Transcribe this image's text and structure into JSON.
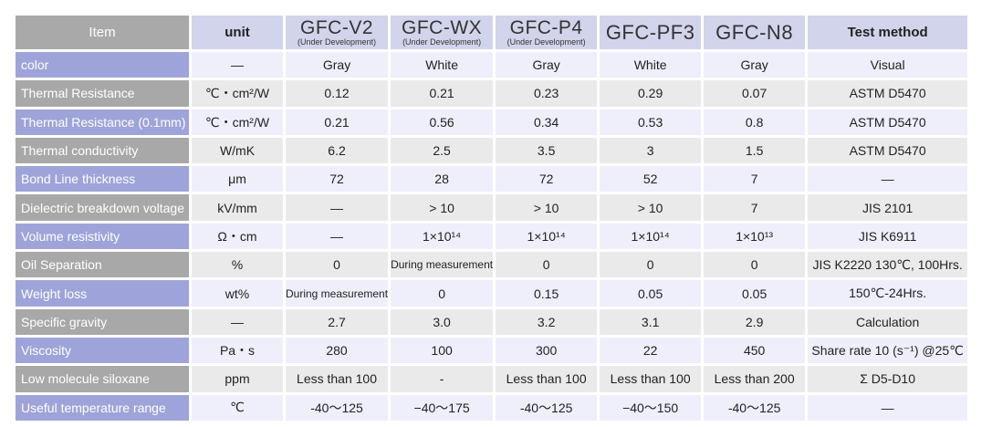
{
  "header": {
    "item": "Item",
    "unit": "unit",
    "test_method": "Test method",
    "products": [
      {
        "name": "GFC-V2",
        "note": "(Under Development)"
      },
      {
        "name": "GFC-WX",
        "note": "(Under Development)"
      },
      {
        "name": "GFC-P4",
        "note": "(Under Development)"
      },
      {
        "name": "GFC-PF3",
        "note": ""
      },
      {
        "name": "GFC-N8",
        "note": ""
      }
    ]
  },
  "colors": {
    "label_odd": "#9ea4d9",
    "label_even": "#a8a8a8",
    "cell_odd": "#eeeffa",
    "cell_even": "#eaeaea",
    "header_bg": "#d2d4ec",
    "header_item_bg": "#a9a9a9"
  },
  "rows": [
    {
      "item": "color",
      "unit": "—",
      "values": [
        "Gray",
        "White",
        "Gray",
        "White",
        "Gray"
      ],
      "test": "Visual"
    },
    {
      "item": "Thermal Resistance",
      "unit": "℃・cm²/W",
      "values": [
        "0.12",
        "0.21",
        "0.23",
        "0.29",
        "0.07"
      ],
      "test": "ASTM D5470"
    },
    {
      "item": "Thermal Resistance (0.1mm)",
      "unit": "℃・cm²/W",
      "values": [
        "0.21",
        "0.56",
        "0.34",
        "0.53",
        "0.8"
      ],
      "test": "ASTM D5470"
    },
    {
      "item": "Thermal conductivity",
      "unit": "W/mK",
      "values": [
        "6.2",
        "2.5",
        "3.5",
        "3",
        "1.5"
      ],
      "test": "ASTM D5470"
    },
    {
      "item": "Bond Line thickness",
      "unit": "μm",
      "values": [
        "72",
        "28",
        "72",
        "52",
        "7"
      ],
      "test": "—"
    },
    {
      "item": "Dielectric breakdown voltage",
      "unit": "kV/mm",
      "values": [
        "—",
        "> 10",
        "> 10",
        "> 10",
        "7"
      ],
      "test": "JIS 2101"
    },
    {
      "item": "Volume resistivity",
      "unit": "Ω・cm",
      "values": [
        "—",
        "1×10¹⁴",
        "1×10¹⁴",
        "1×10¹⁴",
        "1×10¹³"
      ],
      "test": "JIS K6911"
    },
    {
      "item": "Oil Separation",
      "unit": "%",
      "values": [
        "0",
        "During measurement",
        "0",
        "0",
        "0"
      ],
      "test": "JIS K2220 130℃, 100Hrs."
    },
    {
      "item": "Weight loss",
      "unit": "wt%",
      "values": [
        "During measurement",
        "0",
        "0.15",
        "0.05",
        "0.05"
      ],
      "test": "150℃-24Hrs."
    },
    {
      "item": "Specific gravity",
      "unit": "—",
      "values": [
        "2.7",
        "3.0",
        "3.2",
        "3.1",
        "2.9"
      ],
      "test": "Calculation"
    },
    {
      "item": "Viscosity",
      "unit": "Pa・s",
      "values": [
        "280",
        "100",
        "300",
        "22",
        "450"
      ],
      "test": "Share rate 10 (s⁻¹) @25℃"
    },
    {
      "item": "Low molecule siloxane",
      "unit": "ppm",
      "values": [
        "Less than 100",
        "-",
        "Less than 100",
        "Less than 100",
        "Less than 200"
      ],
      "test": "Σ D5-D10"
    },
    {
      "item": "Useful temperature range",
      "unit": "℃",
      "values": [
        "-40〜125",
        "−40〜175",
        "-40〜125",
        "−40〜150",
        "-40〜125"
      ],
      "test": "—"
    }
  ]
}
